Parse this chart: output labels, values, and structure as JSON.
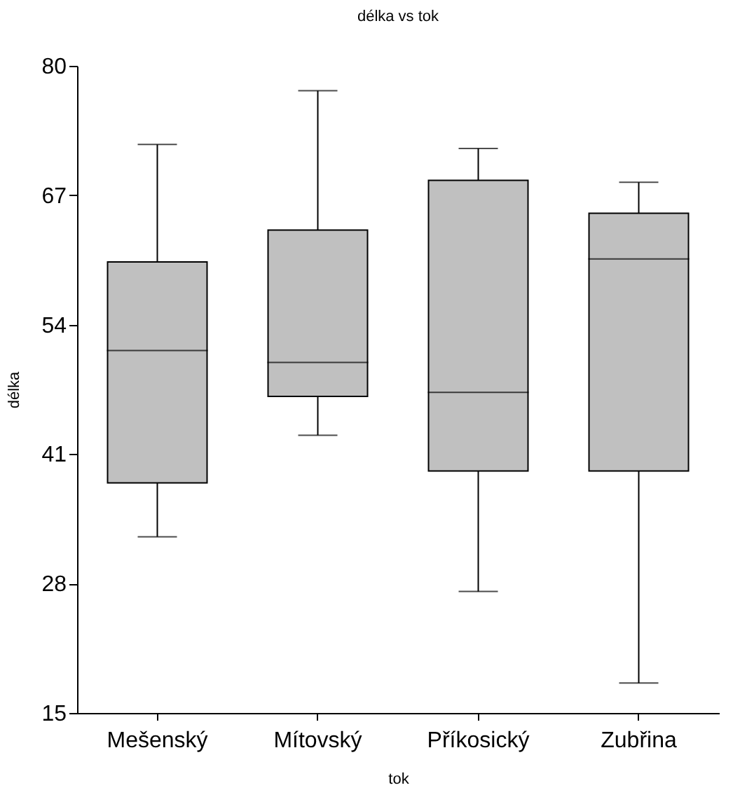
{
  "chart_data": {
    "type": "box",
    "title": "délka vs tok",
    "xlabel": "tok",
    "ylabel": "délka",
    "categories": [
      "Mešenský",
      "Mítovský",
      "Příkosický",
      "Zubřina"
    ],
    "color": "#c0c0c0",
    "boxes": [
      {
        "low": 32.7,
        "q1": 38.1,
        "median": 51.4,
        "q3": 60.3,
        "high": 72.1
      },
      {
        "low": 42.9,
        "q1": 46.8,
        "median": 50.2,
        "q3": 63.5,
        "high": 77.5
      },
      {
        "low": 27.2,
        "q1": 39.3,
        "median": 47.2,
        "q3": 68.5,
        "high": 71.7
      },
      {
        "low": 18.0,
        "q1": 39.3,
        "median": 60.6,
        "q3": 65.2,
        "high": 68.3
      }
    ],
    "ylim": [
      15,
      80
    ],
    "yticks": [
      15,
      28,
      41,
      54,
      67,
      80
    ]
  }
}
